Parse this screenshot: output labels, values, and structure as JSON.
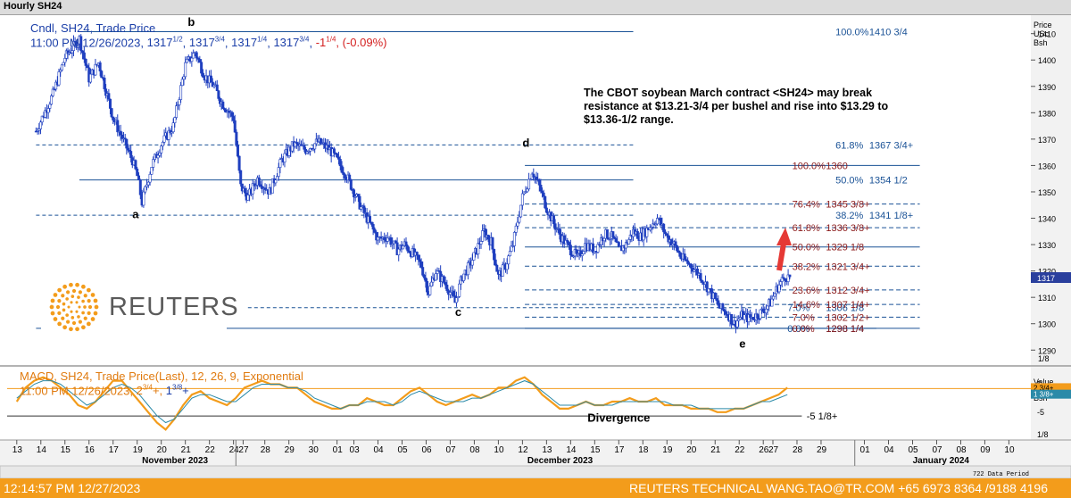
{
  "window": {
    "title": "Hourly SH24"
  },
  "header": {
    "line1": "Cndl, SH24, Trade Price",
    "line2_time": "11:00 PM 12/26/2023,",
    "ohlc": [
      {
        "whole": "1317",
        "frac": "1/2"
      },
      {
        "whole": "1317",
        "frac": "3/4"
      },
      {
        "whole": "1317",
        "frac": "1/4"
      },
      {
        "whole": "1317",
        "frac": "3/4"
      }
    ],
    "change_whole": "-1",
    "change_frac": "1/4",
    "change_pct": "(-0.09%)"
  },
  "annotation": "The CBOT soybean March contract <SH24> may break resistance at $13.21-3/4 per bushel and rise into $13.29  to $13.36-1/2 range.",
  "logo": {
    "text": "REUTERS"
  },
  "macd_header": {
    "line1": "MACD, SH24, Trade Price(Last),  12, 26, 9, Exponential",
    "line2_time": "11:00 PM 12/26/2023,",
    "v1_whole": "2",
    "v1_frac": "3/4",
    "v1_suffix": "+,",
    "v2_whole": "1",
    "v2_frac": "3/8",
    "v2_suffix": "+"
  },
  "status": {
    "left": "12:14:57 PM 12/27/2023",
    "right": "REUTERS TECHNICAL  WANG.TAO@TR.COM  +65 6973 8364 /9188 4196"
  },
  "colors": {
    "candle": "#1f3fbf",
    "fib_blue": "#1a5296",
    "fib_red": "#8b1a1a",
    "macd": "#f39c1b",
    "signal": "#2b8aa8",
    "status": "#f39c1b",
    "arrow": "#e53935"
  },
  "chart_data": [
    {
      "type": "candlestick",
      "y_unit": "USc/Bsh",
      "y_axis_label": [
        "Price",
        "USc",
        "Bsh"
      ],
      "ylim": [
        1284,
        1417
      ],
      "y_ticks": [
        1290,
        1300,
        1310,
        1320,
        1330,
        1340,
        1350,
        1360,
        1370,
        1380,
        1390,
        1400,
        1410
      ],
      "y_tick_extra": "1/8",
      "last_price": "1317",
      "grid": false,
      "price_path": [
        [
          13.8,
          1373
        ],
        [
          14.5,
          1387
        ],
        [
          15.0,
          1401
        ],
        [
          15.6,
          1408
        ],
        [
          16.0,
          1393
        ],
        [
          16.4,
          1399
        ],
        [
          17.0,
          1378
        ],
        [
          17.5,
          1368
        ],
        [
          17.8,
          1362
        ],
        [
          18.0,
          1356
        ],
        [
          18.2,
          1346
        ],
        [
          18.6,
          1360
        ],
        [
          19.0,
          1368
        ],
        [
          19.5,
          1375
        ],
        [
          20.0,
          1398
        ],
        [
          20.4,
          1403
        ],
        [
          20.8,
          1394
        ],
        [
          21.2,
          1390
        ],
        [
          21.5,
          1384
        ],
        [
          22.0,
          1378
        ],
        [
          22.3,
          1352
        ],
        [
          22.6,
          1348
        ],
        [
          23.0,
          1355
        ],
        [
          23.5,
          1350
        ],
        [
          24.0,
          1362
        ],
        [
          24.5,
          1368
        ],
        [
          25.0,
          1366
        ],
        [
          25.5,
          1369
        ],
        [
          26.0,
          1366
        ],
        [
          26.3,
          1362
        ],
        [
          26.7,
          1356
        ],
        [
          27.0,
          1350
        ],
        [
          27.3,
          1344
        ],
        [
          27.6,
          1339
        ],
        [
          28.0,
          1332
        ],
        [
          28.4,
          1333
        ],
        [
          28.8,
          1328
        ],
        [
          29.1,
          1330
        ],
        [
          29.5,
          1326
        ],
        [
          29.8,
          1322
        ],
        [
          30.1,
          1312
        ],
        [
          30.4,
          1320
        ],
        [
          30.8,
          1315
        ],
        [
          31.0,
          1312
        ],
        [
          31.2,
          1308
        ],
        [
          31.5,
          1318
        ],
        [
          31.8,
          1322
        ],
        [
          32.1,
          1328
        ],
        [
          32.4,
          1335
        ],
        [
          32.7,
          1331
        ],
        [
          33.0,
          1318
        ],
        [
          33.3,
          1322
        ],
        [
          33.6,
          1330
        ],
        [
          34.0,
          1348
        ],
        [
          34.4,
          1358
        ],
        [
          34.7,
          1352
        ],
        [
          35.0,
          1344
        ],
        [
          35.3,
          1338
        ],
        [
          35.6,
          1333
        ],
        [
          36.0,
          1328
        ],
        [
          36.3,
          1325
        ],
        [
          36.6,
          1330
        ],
        [
          37.0,
          1328
        ],
        [
          37.4,
          1334
        ],
        [
          37.7,
          1333
        ],
        [
          38.0,
          1328
        ],
        [
          38.3,
          1330
        ],
        [
          38.6,
          1335
        ],
        [
          38.9,
          1333
        ],
        [
          39.3,
          1337
        ],
        [
          39.6,
          1340
        ],
        [
          40.0,
          1333
        ],
        [
          40.3,
          1330
        ],
        [
          40.6,
          1325
        ],
        [
          41.0,
          1322
        ],
        [
          41.4,
          1318
        ],
        [
          41.8,
          1312
        ],
        [
          42.2,
          1306
        ],
        [
          42.5,
          1304
        ],
        [
          42.8,
          1300
        ],
        [
          43.1,
          1303
        ],
        [
          43.4,
          1302
        ],
        [
          43.7,
          1303
        ],
        [
          44.0,
          1305
        ],
        [
          44.3,
          1308
        ],
        [
          44.6,
          1314
        ],
        [
          44.9,
          1318
        ],
        [
          45.1,
          1317.5
        ]
      ],
      "swing_labels": [
        "a",
        "b",
        "c",
        "d",
        "e"
      ],
      "fib_levels_left": [
        {
          "pct": "100.0%",
          "value": "1410 3/4",
          "y": 1410.75
        },
        {
          "pct": "61.8%",
          "value": "1367 3/4+",
          "y": 1367.8
        },
        {
          "pct": "50.0%",
          "value": "1354 1/2",
          "y": 1354.5
        },
        {
          "pct": "38.2%",
          "value": "1341 1/8+",
          "y": 1341.15
        },
        {
          "pct": "7.0%",
          "value": "1306 1/8",
          "y": 1306.1
        },
        {
          "pct": "0.0%",
          "value": "1298 1/4",
          "y": 1298.25
        }
      ],
      "fib_levels_right": [
        {
          "pct": "100.0%",
          "value": "1360",
          "y": 1360
        },
        {
          "pct": "76.4%",
          "value": "1345 3/8+",
          "y": 1345.4
        },
        {
          "pct": "61.8%",
          "value": "1336 3/8+",
          "y": 1336.4
        },
        {
          "pct": "50.0%",
          "value": "1329 1/8",
          "y": 1329.1
        },
        {
          "pct": "38.2%",
          "value": "1321 3/4+",
          "y": 1321.8
        },
        {
          "pct": "23.6%",
          "value": "1312 3/4+",
          "y": 1312.8
        },
        {
          "pct": "14.6%",
          "value": "1307 1/4+",
          "y": 1307.3
        },
        {
          "pct": "7.0%",
          "value": "1302 1/2+",
          "y": 1302.5
        },
        {
          "pct": "0.0%",
          "value": "1298 1/4",
          "y": 1298.25
        }
      ]
    },
    {
      "type": "line",
      "indicator": "MACD",
      "params": "12, 26, 9, Exponential",
      "y_axis_label": [
        "Value",
        "USc",
        "Bsh"
      ],
      "ylim": [
        -12,
        9
      ],
      "y_ticks": [
        {
          "label": "5",
          "y": 4
        },
        {
          "label": "-5",
          "y": -4
        }
      ],
      "y_tick_extra": "1/8",
      "current_macd": "2 3/4+",
      "current_signal": "1 3/8+",
      "reference_line": -5.125,
      "reference_label": "-5 1/8+",
      "annotation": "Divergence",
      "series": [
        {
          "values": [
            -1,
            3,
            5,
            6,
            5,
            3,
            1,
            -2,
            -3,
            -1,
            2,
            5,
            5,
            2,
            -1,
            -4,
            -7,
            -9,
            -6,
            -2,
            1,
            2,
            0,
            -1,
            -2,
            0,
            3,
            4,
            5,
            4,
            4,
            3,
            3,
            1,
            -1,
            -2,
            -3,
            -3,
            -2,
            -2,
            0,
            -1,
            -2,
            -2,
            0,
            2,
            3,
            1,
            -1,
            -2,
            -1,
            0,
            1,
            0,
            1,
            3,
            3,
            5,
            6,
            4,
            1,
            -1,
            -3,
            -3,
            -2,
            -1,
            -2,
            -2,
            -1,
            -1,
            0,
            -1,
            -1,
            0,
            -2,
            -2,
            -2,
            -3,
            -3,
            -3,
            -4,
            -4,
            -3,
            -3,
            -2,
            -1,
            0,
            1,
            3
          ]
        },
        {
          "values": [
            0,
            2,
            4,
            5,
            5,
            4,
            2,
            0,
            -2,
            -1,
            1,
            3,
            4,
            3,
            1,
            -2,
            -5,
            -7,
            -6,
            -3,
            0,
            1,
            1,
            0,
            -1,
            -1,
            1,
            3,
            4,
            4,
            4,
            3,
            3,
            2,
            0,
            -1,
            -2,
            -3,
            -2,
            -2,
            -1,
            -1,
            -1,
            -2,
            -1,
            1,
            2,
            1,
            0,
            -1,
            -1,
            -1,
            0,
            0,
            1,
            2,
            3,
            4,
            5,
            4,
            2,
            0,
            -2,
            -2,
            -2,
            -1,
            -2,
            -2,
            -2,
            -1,
            -1,
            -1,
            -1,
            -1,
            -1,
            -2,
            -2,
            -2,
            -3,
            -3,
            -3,
            -3,
            -3,
            -3,
            -2,
            -1,
            -1,
            0,
            1
          ]
        }
      ]
    }
  ],
  "x_axis": {
    "ticks": [
      {
        "label": "13",
        "x": 13
      },
      {
        "label": "14",
        "x": 14
      },
      {
        "label": "15",
        "x": 15
      },
      {
        "label": "16",
        "x": 16
      },
      {
        "label": "17",
        "x": 17
      },
      {
        "label": "19",
        "x": 18
      },
      {
        "label": "20",
        "x": 19
      },
      {
        "label": "21",
        "x": 20
      },
      {
        "label": "22",
        "x": 21
      },
      {
        "label": "24",
        "x": 22
      },
      {
        "label": "27",
        "x": 22.4
      },
      {
        "label": "28",
        "x": 23.3
      },
      {
        "label": "29",
        "x": 24.3
      },
      {
        "label": "30",
        "x": 25.3
      },
      {
        "label": "01",
        "x": 26.3
      },
      {
        "label": "03",
        "x": 27.0
      },
      {
        "label": "04",
        "x": 28.0
      },
      {
        "label": "05",
        "x": 29.0
      },
      {
        "label": "06",
        "x": 30.0
      },
      {
        "label": "07",
        "x": 31.0
      },
      {
        "label": "08",
        "x": 32.0
      },
      {
        "label": "10",
        "x": 33.0
      },
      {
        "label": "12",
        "x": 34.0
      },
      {
        "label": "13",
        "x": 35.0
      },
      {
        "label": "14",
        "x": 36.0
      },
      {
        "label": "15",
        "x": 37.0
      },
      {
        "label": "17",
        "x": 38.0
      },
      {
        "label": "18",
        "x": 39.0
      },
      {
        "label": "19",
        "x": 40.0
      },
      {
        "label": "20",
        "x": 41.0
      },
      {
        "label": "21",
        "x": 42.0
      },
      {
        "label": "22",
        "x": 43.0
      },
      {
        "label": "26",
        "x": 44.0
      },
      {
        "label": "27",
        "x": 44.4
      },
      {
        "label": "28",
        "x": 45.4
      },
      {
        "label": "29",
        "x": 46.4
      },
      {
        "label": "01",
        "x": 48.2
      },
      {
        "label": "04",
        "x": 49.2
      },
      {
        "label": "05",
        "x": 50.2
      },
      {
        "label": "07",
        "x": 51.2
      },
      {
        "label": "08",
        "x": 52.2
      },
      {
        "label": "09",
        "x": 53.2
      },
      {
        "label": "10",
        "x": 54.2
      }
    ],
    "months": [
      {
        "label": "November 2023",
        "x": 19.5
      },
      {
        "label": "December 2023",
        "x": 35.5
      },
      {
        "label": "January 2024",
        "x": 51.5
      }
    ],
    "footer": "722 Data Period"
  }
}
